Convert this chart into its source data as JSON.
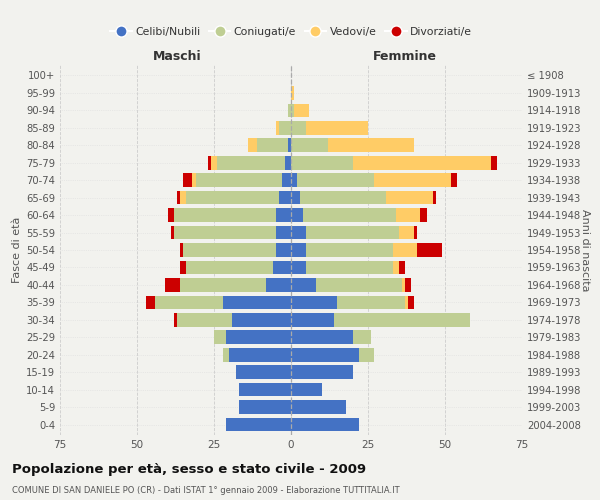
{
  "age_groups": [
    "0-4",
    "5-9",
    "10-14",
    "15-19",
    "20-24",
    "25-29",
    "30-34",
    "35-39",
    "40-44",
    "45-49",
    "50-54",
    "55-59",
    "60-64",
    "65-69",
    "70-74",
    "75-79",
    "80-84",
    "85-89",
    "90-94",
    "95-99",
    "100+"
  ],
  "birth_years": [
    "2004-2008",
    "1999-2003",
    "1994-1998",
    "1989-1993",
    "1984-1988",
    "1979-1983",
    "1974-1978",
    "1969-1973",
    "1964-1968",
    "1959-1963",
    "1954-1958",
    "1949-1953",
    "1944-1948",
    "1939-1943",
    "1934-1938",
    "1929-1933",
    "1924-1928",
    "1919-1923",
    "1914-1918",
    "1909-1913",
    "≤ 1908"
  ],
  "male_celibi": [
    21,
    17,
    17,
    18,
    20,
    21,
    19,
    22,
    8,
    6,
    5,
    5,
    5,
    4,
    3,
    2,
    1,
    0,
    0,
    0,
    0
  ],
  "male_coniugati": [
    0,
    0,
    0,
    0,
    2,
    4,
    18,
    22,
    28,
    28,
    30,
    33,
    33,
    30,
    28,
    22,
    10,
    4,
    1,
    0,
    0
  ],
  "male_vedovi": [
    0,
    0,
    0,
    0,
    0,
    0,
    0,
    0,
    0,
    0,
    0,
    0,
    0,
    2,
    1,
    2,
    3,
    1,
    0,
    0,
    0
  ],
  "male_divorziati": [
    0,
    0,
    0,
    0,
    0,
    0,
    1,
    3,
    5,
    2,
    1,
    1,
    2,
    1,
    3,
    1,
    0,
    0,
    0,
    0,
    0
  ],
  "fem_nubili": [
    22,
    18,
    10,
    20,
    22,
    20,
    14,
    15,
    8,
    5,
    5,
    5,
    4,
    3,
    2,
    0,
    0,
    0,
    0,
    0,
    0
  ],
  "fem_coniugate": [
    0,
    0,
    0,
    0,
    5,
    6,
    44,
    22,
    28,
    28,
    28,
    30,
    30,
    28,
    25,
    20,
    12,
    5,
    1,
    0,
    0
  ],
  "fem_vedove": [
    0,
    0,
    0,
    0,
    0,
    0,
    0,
    1,
    1,
    2,
    8,
    5,
    8,
    15,
    25,
    45,
    28,
    20,
    5,
    1,
    0
  ],
  "fem_divorziate": [
    0,
    0,
    0,
    0,
    0,
    0,
    0,
    2,
    2,
    2,
    8,
    1,
    2,
    1,
    2,
    2,
    0,
    0,
    0,
    0,
    0
  ],
  "colors": {
    "celibi": "#4472C4",
    "coniugati": "#BFCE93",
    "vedovi": "#FFCC66",
    "divorziati": "#CC0000"
  },
  "xlim": 75,
  "title": "Popolazione per età, sesso e stato civile - 2009",
  "subtitle": "COMUNE DI SAN DANIELE PO (CR) - Dati ISTAT 1° gennaio 2009 - Elaborazione TUTTITALIA.IT",
  "ylabel_left": "Fasce di età",
  "ylabel_right": "Anni di nascita",
  "xlabel_male": "Maschi",
  "xlabel_female": "Femmine",
  "legend_labels": [
    "Celibi/Nubili",
    "Coniugati/e",
    "Vedovi/e",
    "Divorziati/e"
  ],
  "bg_color": "#F2F2EE"
}
